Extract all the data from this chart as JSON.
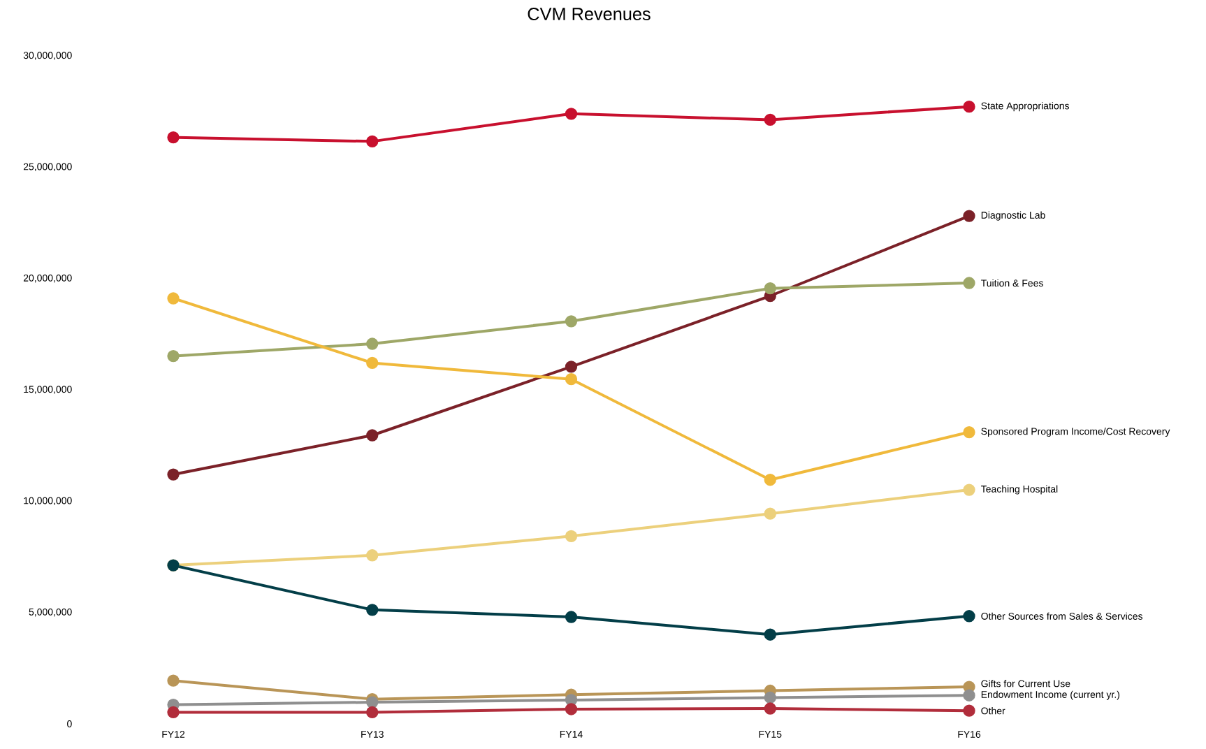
{
  "chart_data": {
    "type": "line",
    "title": "CVM Revenues",
    "categories": [
      "FY12",
      "FY13",
      "FY14",
      "FY15",
      "FY16"
    ],
    "ylim": [
      0,
      30000000
    ],
    "yticks": [
      {
        "value": 0,
        "label": "0"
      },
      {
        "value": 5000000,
        "label": "5,000,000"
      },
      {
        "value": 10000000,
        "label": "10,000,000"
      },
      {
        "value": 15000000,
        "label": "15,000,000"
      },
      {
        "value": 20000000,
        "label": "20,000,000"
      },
      {
        "value": 25000000,
        "label": "25,000,000"
      },
      {
        "value": 30000000,
        "label": "30,000,000"
      }
    ],
    "grid": false,
    "legend": false,
    "marker": "circle",
    "line_style": "solid",
    "series": [
      {
        "name": "State Appropriations",
        "color": "#c8102e",
        "values": [
          26340000,
          26160000,
          27400000,
          27130000,
          27720000
        ]
      },
      {
        "name": "Diagnostic Lab",
        "color": "#7b2128",
        "values": [
          11200000,
          12960000,
          16040000,
          19220000,
          22810000
        ]
      },
      {
        "name": "Tuition & Fees",
        "color": "#9ea767",
        "values": [
          16520000,
          17070000,
          18080000,
          19560000,
          19800000
        ]
      },
      {
        "name": "Sponsored Program Income/Cost Recovery",
        "color": "#f0b93b",
        "values": [
          19110000,
          16210000,
          15480000,
          10960000,
          13100000
        ]
      },
      {
        "name": "Teaching Hospital",
        "color": "#ecd07c",
        "values": [
          7120000,
          7570000,
          8430000,
          9440000,
          10510000
        ]
      },
      {
        "name": "Other Sources from Sales & Services",
        "color": "#033e48",
        "values": [
          7120000,
          5120000,
          4800000,
          4010000,
          4840000
        ]
      },
      {
        "name": "Gifts for Current Use",
        "color": "#b99557",
        "values": [
          1940000,
          1110000,
          1310000,
          1490000,
          1660000
        ]
      },
      {
        "name": "Endowment Income (current yr.)",
        "color": "#8f8f8f",
        "values": [
          860000,
          970000,
          1070000,
          1180000,
          1280000
        ]
      },
      {
        "name": "Other",
        "color": "#b12d3b",
        "values": [
          520000,
          520000,
          660000,
          690000,
          590000
        ]
      }
    ]
  }
}
